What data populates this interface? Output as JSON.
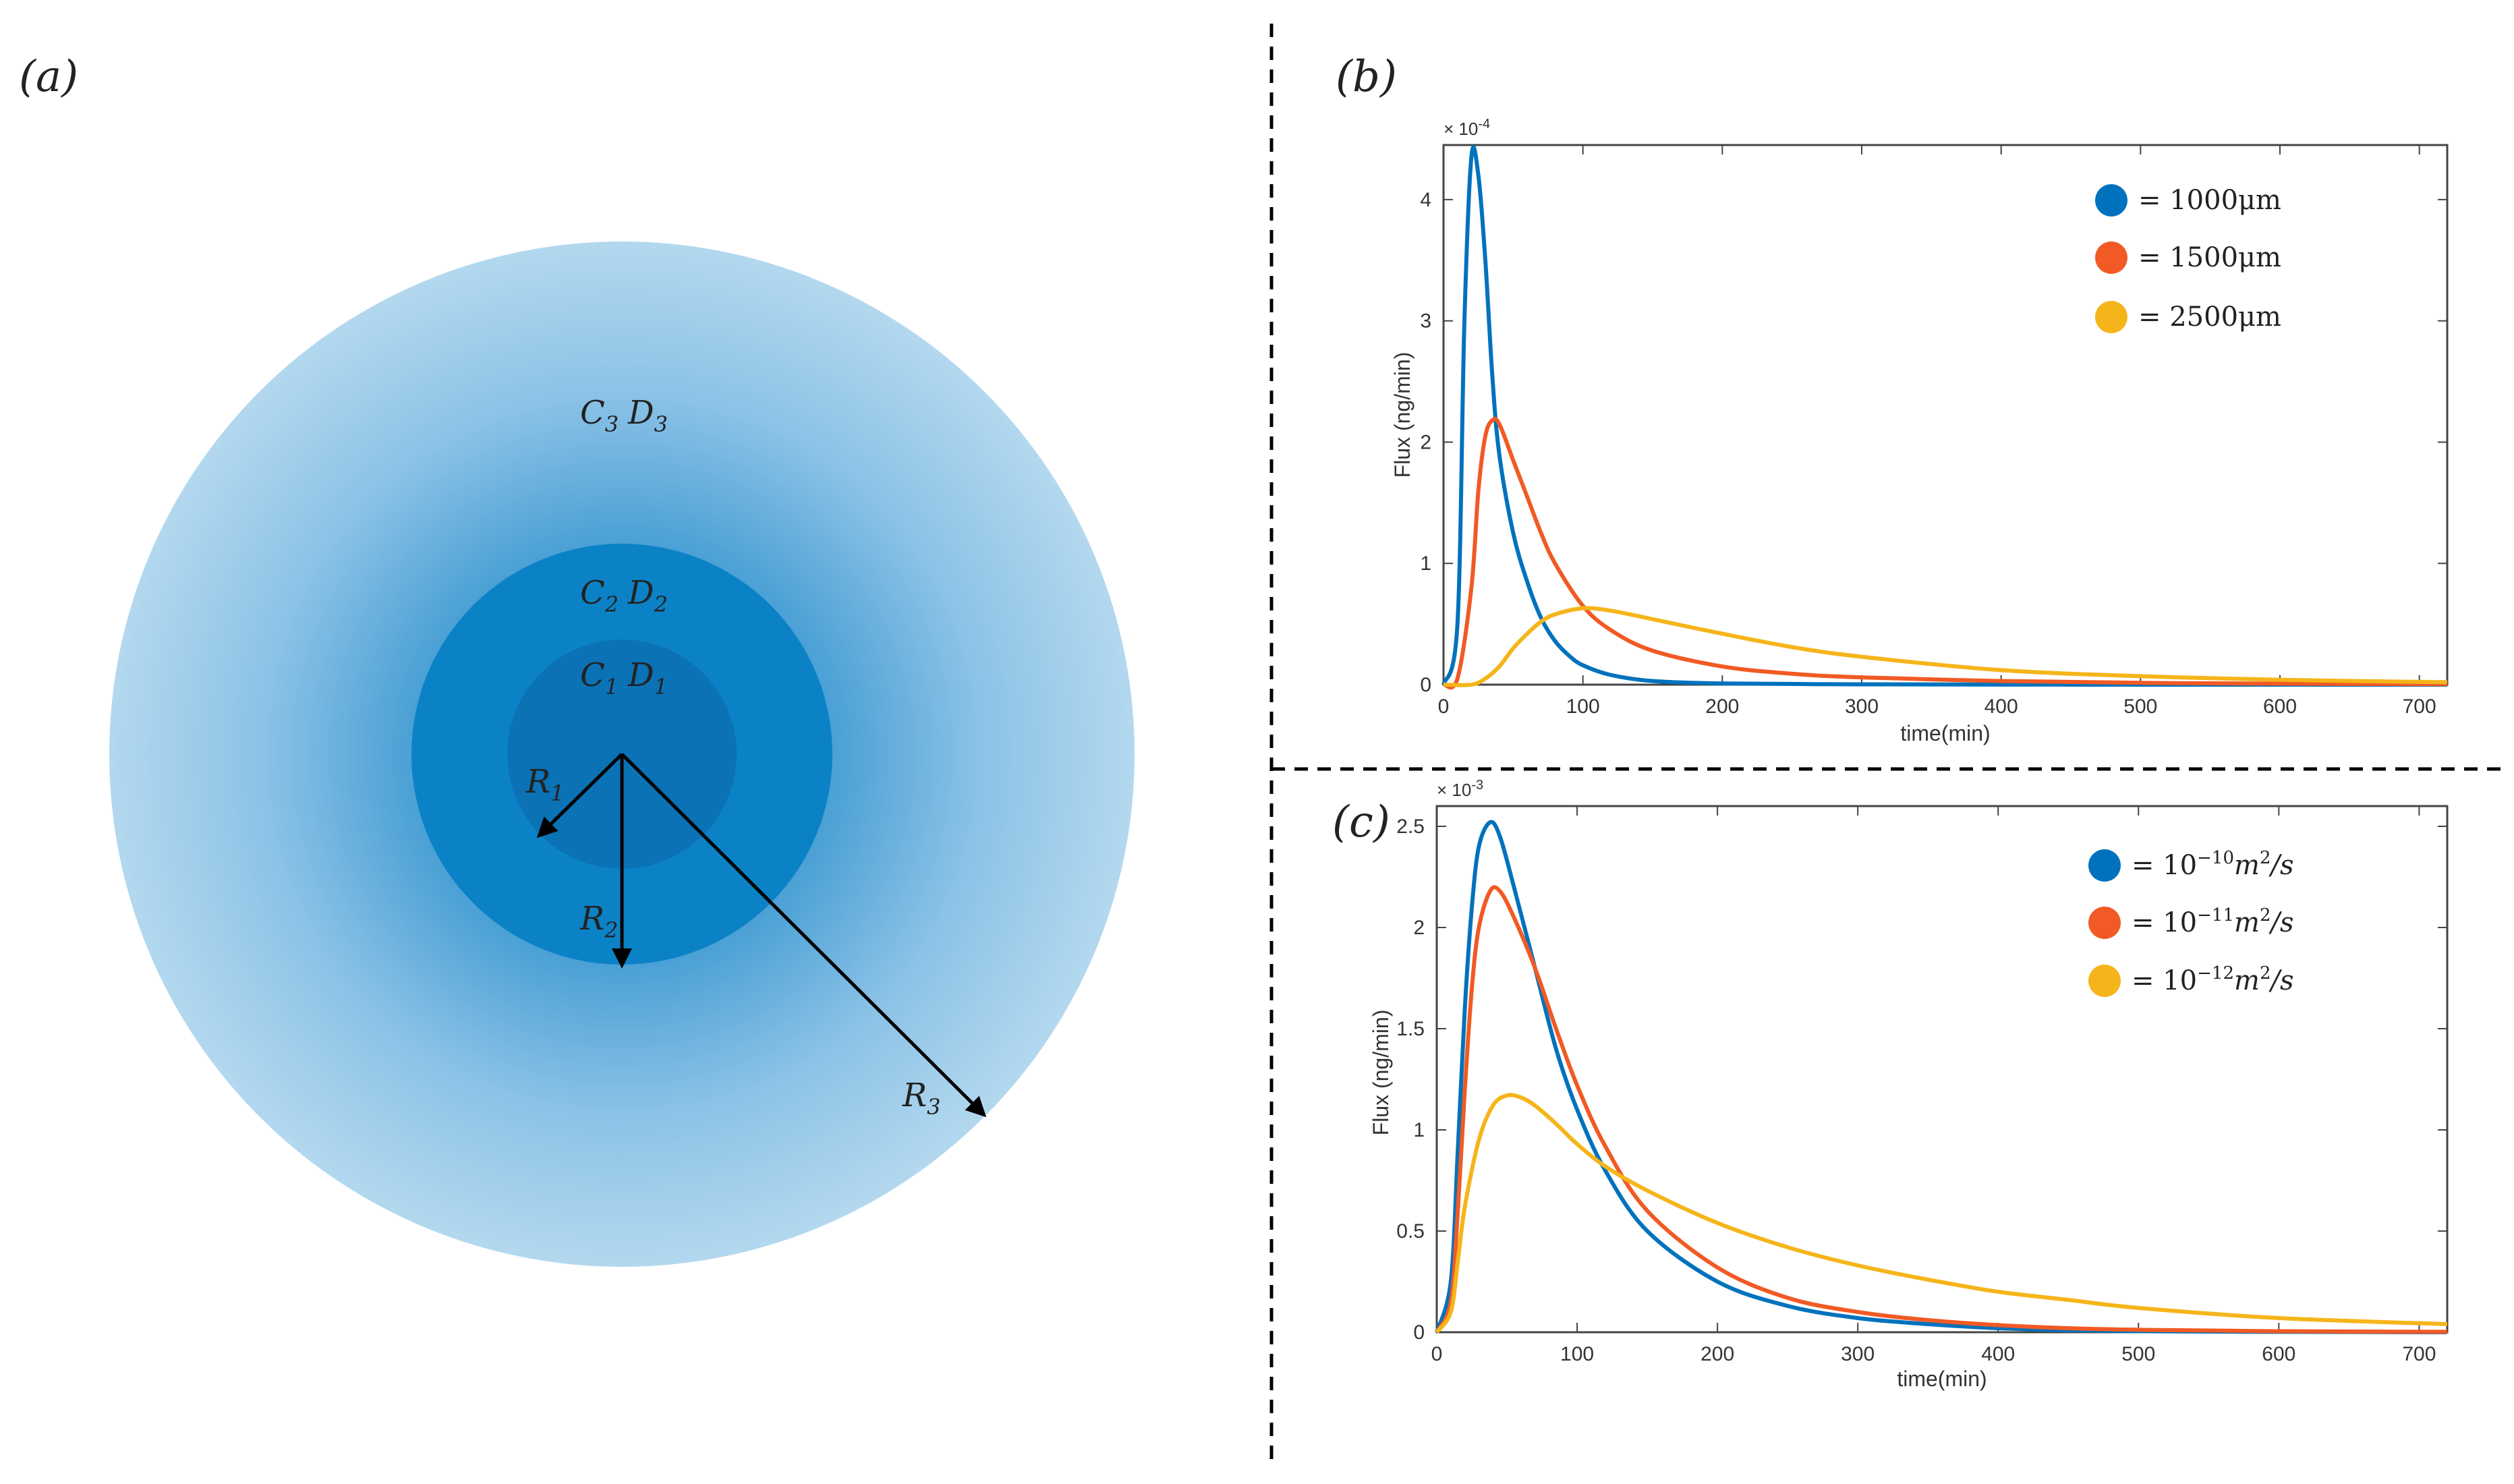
{
  "panel_labels": {
    "a": "(a)",
    "b": "(b)",
    "c": "(c)"
  },
  "diagram": {
    "regions": [
      {
        "c": "C",
        "d": "D",
        "sub": "1"
      },
      {
        "c": "C",
        "d": "D",
        "sub": "2"
      },
      {
        "c": "C",
        "d": "D",
        "sub": "3"
      }
    ],
    "radii": [
      {
        "r": "R",
        "sub": "1"
      },
      {
        "r": "R",
        "sub": "2"
      },
      {
        "r": "R",
        "sub": "3"
      }
    ],
    "colors": {
      "outer": "#a9d2ec",
      "mid": "#0b82c6",
      "inner": "#0a74b7",
      "arrow": "#000000"
    }
  },
  "chart_data": [
    {
      "id": "b",
      "type": "line",
      "xlabel": "time(min)",
      "ylabel": "Flux  (ng/min)",
      "exponent_base": "× 10",
      "exponent_power": "-4",
      "xlim": [
        0,
        720
      ],
      "ylim": [
        0,
        4.45
      ],
      "xticks": [
        0,
        100,
        200,
        300,
        400,
        500,
        600,
        700
      ],
      "yticks": [
        0,
        1,
        2,
        3,
        4
      ],
      "series": [
        {
          "name": "= 1000μm",
          "color": "#0072bd",
          "x": [
            0,
            10,
            15,
            20,
            25,
            30,
            35,
            40,
            50,
            60,
            70,
            80,
            90,
            100,
            120,
            150,
            200,
            300,
            400,
            500,
            600,
            720
          ],
          "y": [
            0,
            0.5,
            3.0,
            4.35,
            4.2,
            3.5,
            2.55,
            1.9,
            1.25,
            0.85,
            0.55,
            0.36,
            0.24,
            0.16,
            0.08,
            0.03,
            0.01,
            0.003,
            0.001,
            0,
            0,
            0
          ]
        },
        {
          "name": "= 1500μm",
          "color": "#f15a24",
          "x": [
            0,
            10,
            20,
            25,
            30,
            35,
            40,
            50,
            60,
            70,
            80,
            100,
            120,
            150,
            200,
            250,
            300,
            400,
            500,
            600,
            720
          ],
          "y": [
            0,
            0.05,
            0.8,
            1.6,
            2.05,
            2.18,
            2.15,
            1.85,
            1.55,
            1.25,
            1.0,
            0.65,
            0.45,
            0.28,
            0.15,
            0.09,
            0.06,
            0.03,
            0.015,
            0.008,
            0.004
          ]
        },
        {
          "name": "= 2500μm",
          "color": "#f5b51a",
          "x": [
            0,
            20,
            30,
            40,
            50,
            60,
            70,
            80,
            100,
            120,
            150,
            200,
            250,
            300,
            400,
            500,
            600,
            720
          ],
          "y": [
            0,
            0.0,
            0.05,
            0.15,
            0.3,
            0.42,
            0.52,
            0.58,
            0.63,
            0.61,
            0.54,
            0.42,
            0.31,
            0.23,
            0.12,
            0.07,
            0.04,
            0.02
          ]
        }
      ]
    },
    {
      "id": "c",
      "type": "line",
      "xlabel": "time(min)",
      "ylabel": "Flux  (ng/min)",
      "exponent_base": "× 10",
      "exponent_power": "-3",
      "xlim": [
        0,
        720
      ],
      "ylim": [
        0,
        2.6
      ],
      "xticks": [
        0,
        100,
        200,
        300,
        400,
        500,
        600,
        700
      ],
      "yticks": [
        0,
        0.5,
        1,
        1.5,
        2,
        2.5
      ],
      "series": [
        {
          "name_base": "= 10",
          "name_exp": "−10",
          "name_unit": "m",
          "name_unit_exp": "2",
          "name_tail": "/s",
          "color": "#0072bd",
          "x": [
            0,
            10,
            15,
            20,
            25,
            30,
            38,
            45,
            55,
            70,
            85,
            100,
            120,
            150,
            200,
            250,
            300,
            350,
            400,
            450,
            500,
            600,
            720
          ],
          "y": [
            0,
            0.25,
            0.9,
            1.6,
            2.1,
            2.4,
            2.52,
            2.45,
            2.2,
            1.8,
            1.4,
            1.1,
            0.8,
            0.5,
            0.25,
            0.13,
            0.07,
            0.04,
            0.02,
            0.01,
            0.005,
            0.002,
            0
          ]
        },
        {
          "name_base": "= 10",
          "name_exp": "−11",
          "name_unit": "m",
          "name_unit_exp": "2",
          "name_tail": "/s",
          "color": "#f15a24",
          "x": [
            0,
            10,
            15,
            20,
            25,
            30,
            38,
            45,
            55,
            70,
            85,
            100,
            120,
            150,
            200,
            250,
            300,
            350,
            400,
            450,
            500,
            600,
            720
          ],
          "y": [
            0,
            0.15,
            0.6,
            1.2,
            1.7,
            2.0,
            2.18,
            2.18,
            2.05,
            1.8,
            1.5,
            1.22,
            0.92,
            0.6,
            0.32,
            0.17,
            0.1,
            0.06,
            0.035,
            0.02,
            0.012,
            0.005,
            0.002
          ]
        },
        {
          "name_base": "= 10",
          "name_exp": "−12",
          "name_unit": "m",
          "name_unit_exp": "2",
          "name_tail": "/s",
          "color": "#f5b51a",
          "x": [
            0,
            10,
            15,
            20,
            30,
            40,
            50,
            60,
            70,
            85,
            100,
            120,
            150,
            200,
            250,
            300,
            350,
            400,
            450,
            500,
            600,
            720
          ],
          "y": [
            0,
            0.1,
            0.35,
            0.62,
            0.95,
            1.12,
            1.17,
            1.16,
            1.12,
            1.03,
            0.93,
            0.82,
            0.7,
            0.54,
            0.42,
            0.33,
            0.26,
            0.2,
            0.16,
            0.12,
            0.07,
            0.04
          ]
        }
      ]
    }
  ]
}
